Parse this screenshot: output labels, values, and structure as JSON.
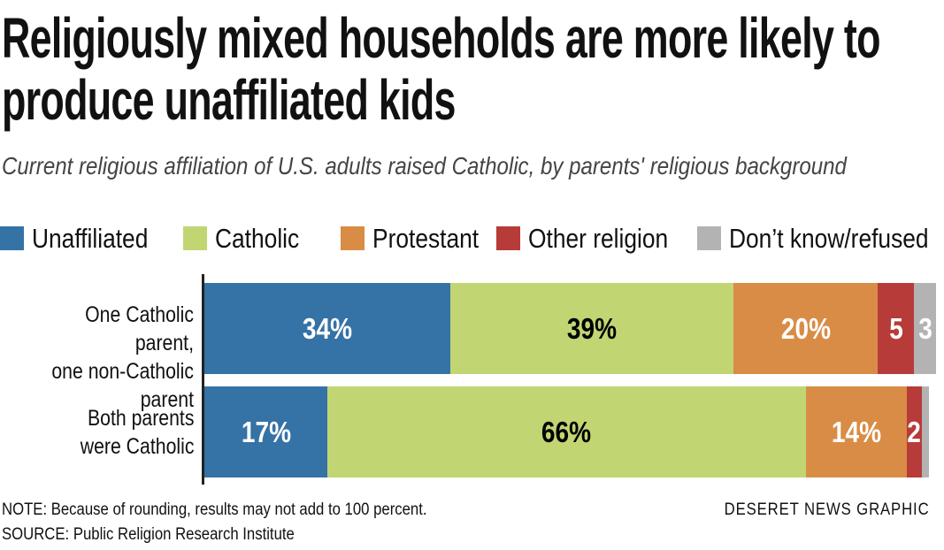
{
  "chart_data": {
    "type": "stacked-bar-horizontal",
    "title": "Religiously mixed households are more likely to produce unaffiliated kids",
    "subtitle": "Current religious affiliation of U.S. adults raised Catholic, by parents' religious background",
    "categories": [
      "One Catholic parent,\none non-Catholic parent",
      "Both parents\nwere Catholic"
    ],
    "series": [
      {
        "name": "Unaffiliated",
        "color": "#3572a5",
        "label_color": "#ffffff",
        "values": [
          34,
          17
        ],
        "value_labels": [
          "34%",
          "17%"
        ]
      },
      {
        "name": "Catholic",
        "color": "#c1d673",
        "label_color": "#000000",
        "values": [
          39,
          66
        ],
        "value_labels": [
          "39%",
          "66%"
        ]
      },
      {
        "name": "Protestant",
        "color": "#d98c45",
        "label_color": "#ffffff",
        "values": [
          20,
          14
        ],
        "value_labels": [
          "20%",
          "14%"
        ]
      },
      {
        "name": "Other religion",
        "color": "#b73b39",
        "label_color": "#ffffff",
        "values": [
          5,
          2
        ],
        "value_labels": [
          "5",
          "2"
        ]
      },
      {
        "name": "Don’t know/refused",
        "color": "#b3b3b3",
        "label_color": "#ffffff",
        "values": [
          3,
          1
        ],
        "value_labels": [
          "3",
          null
        ]
      }
    ],
    "note": "NOTE: Because of rounding, results may not add to 100 percent.",
    "source": "SOURCE: Public Religion Research Institute",
    "credit": "DESERET NEWS GRAPHIC"
  }
}
